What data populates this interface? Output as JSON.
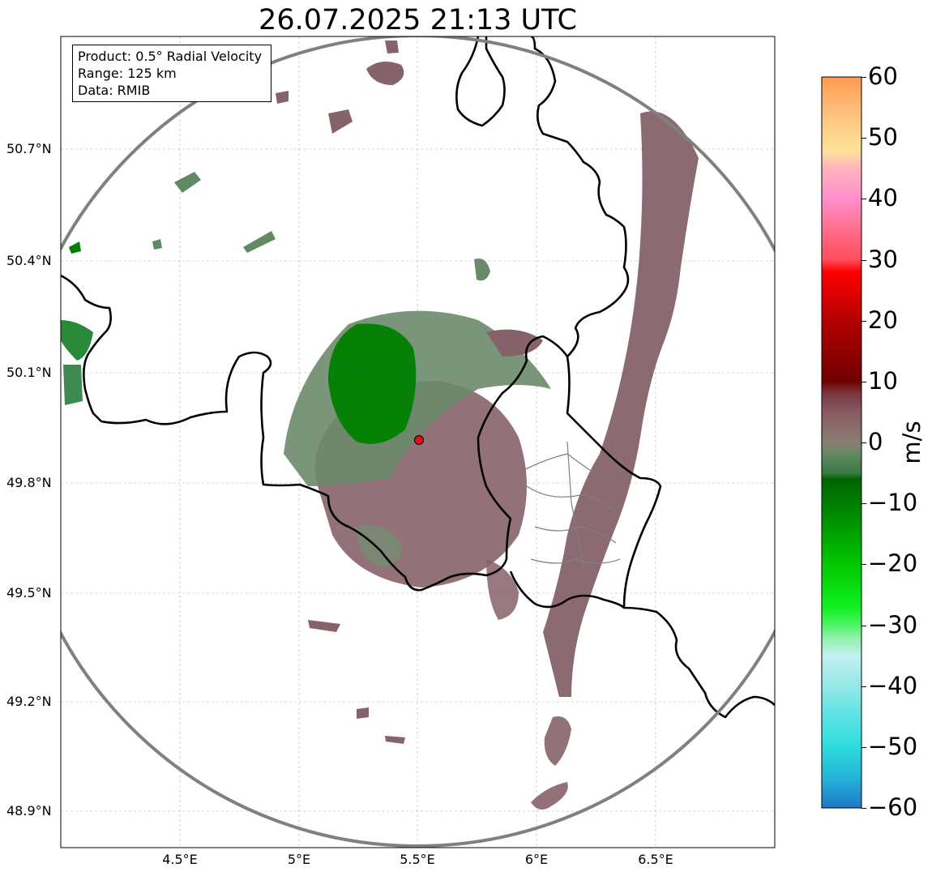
{
  "map": {
    "title": "26.07.2025 21:13 UTC",
    "info_box": {
      "product": "Product: 0.5° Radial Velocity",
      "range": "Range: 125 km",
      "source": "Data: RMIB"
    },
    "extent": {
      "lon_min": 4.0,
      "lon_max": 7.0,
      "lat_min": 48.8,
      "lat_max": 50.99
    },
    "radar_site": {
      "lon": 5.505,
      "lat": 49.914
    },
    "gridlines": "on",
    "lat_labels": [
      {
        "value": 50.7,
        "label": "50.7°N"
      },
      {
        "value": 50.4,
        "label": "50.4°N"
      },
      {
        "value": 50.1,
        "label": "50.1°N"
      },
      {
        "value": 49.8,
        "label": "49.8°N"
      },
      {
        "value": 49.5,
        "label": "49.5°N"
      },
      {
        "value": 49.2,
        "label": "49.2°N"
      },
      {
        "value": 48.9,
        "label": "48.9°N"
      }
    ],
    "lon_labels": [
      {
        "value": 4.5,
        "label": "4.5°E"
      },
      {
        "value": 5.0,
        "label": "5°E"
      },
      {
        "value": 5.5,
        "label": "5.5°E"
      },
      {
        "value": 6.0,
        "label": "6°E"
      },
      {
        "value": 6.5,
        "label": "6.5°E"
      }
    ],
    "colorbar": {
      "unit": "m/s",
      "min": -60,
      "max": 60,
      "ticks": [
        {
          "value": 60,
          "label": "60"
        },
        {
          "value": 50,
          "label": "50"
        },
        {
          "value": 40,
          "label": "40"
        },
        {
          "value": 30,
          "label": "30"
        },
        {
          "value": 20,
          "label": "20"
        },
        {
          "value": 10,
          "label": "10"
        },
        {
          "value": 0,
          "label": "0"
        },
        {
          "value": -10,
          "label": "−10"
        },
        {
          "value": -20,
          "label": "−20"
        },
        {
          "value": -30,
          "label": "−30"
        },
        {
          "value": -40,
          "label": "−40"
        },
        {
          "value": -50,
          "label": "−50"
        },
        {
          "value": -60,
          "label": "−60"
        }
      ],
      "color_stops": [
        {
          "value": -60,
          "color": "#1f78c8"
        },
        {
          "value": -55,
          "color": "#25b4d8"
        },
        {
          "value": -50,
          "color": "#2ddcdc"
        },
        {
          "value": -45,
          "color": "#5ae3e3"
        },
        {
          "value": -40,
          "color": "#95e8e8"
        },
        {
          "value": -35,
          "color": "#c3f0f0"
        },
        {
          "value": -32,
          "color": "#8ff0a8"
        },
        {
          "value": -30,
          "color": "#4df565"
        },
        {
          "value": -27,
          "color": "#10f020"
        },
        {
          "value": -20,
          "color": "#00c800"
        },
        {
          "value": -12,
          "color": "#008c00"
        },
        {
          "value": -6,
          "color": "#006400"
        },
        {
          "value": -5,
          "color": "#3a7a45"
        },
        {
          "value": -2,
          "color": "#5f8a62"
        },
        {
          "value": 0,
          "color": "#8a7e72"
        },
        {
          "value": 5,
          "color": "#8a5a62"
        },
        {
          "value": 8,
          "color": "#7a3a42"
        },
        {
          "value": 10,
          "color": "#6e0000"
        },
        {
          "value": 20,
          "color": "#b40000"
        },
        {
          "value": 28,
          "color": "#ff0000"
        },
        {
          "value": 30,
          "color": "#ff4d5a"
        },
        {
          "value": 35,
          "color": "#ff6e8c"
        },
        {
          "value": 40,
          "color": "#ff8ecb"
        },
        {
          "value": 45,
          "color": "#ffb4c0"
        },
        {
          "value": 48,
          "color": "#ffe39a"
        },
        {
          "value": 55,
          "color": "#ffbb78"
        },
        {
          "value": 60,
          "color": "#ff9a50"
        }
      ]
    },
    "colors": {
      "outgoing_velocity": "#86626a",
      "incoming_velocity": "#5f8a62",
      "strong_incoming": "#008000",
      "borders": "#000000",
      "regional_borders": "#808080",
      "range_ring": "#808080",
      "radar_marker": "#e0101a"
    }
  }
}
